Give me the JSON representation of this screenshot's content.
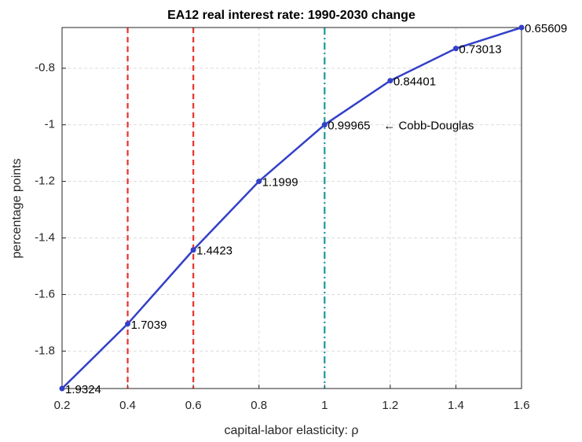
{
  "chart_data": {
    "type": "line",
    "title": "EA12 real interest rate: 1990-2030 change",
    "xlabel": "capital-labor elasticity: ρ",
    "ylabel": "percentage points",
    "x": [
      0.2,
      0.4,
      0.6,
      0.8,
      1,
      1.2,
      1.4,
      1.6
    ],
    "series": [
      {
        "color": "#3340c8",
        "values": [
          -1.9324,
          -1.7039,
          -1.4423,
          -1.1999,
          -0.99965,
          -0.84401,
          -0.73013,
          -0.65609
        ],
        "value_labels": [
          "1.9324",
          "1.7039",
          "1.4423",
          "1.1999",
          "0.99965",
          "0.84401",
          "0.73013",
          "0.65609"
        ]
      }
    ],
    "vlines": [
      {
        "x": 0.4,
        "color": "#e8322b",
        "style": "dashed"
      },
      {
        "x": 0.6,
        "color": "#e8322b",
        "style": "dashed"
      },
      {
        "x": 1,
        "color": "#199a9a",
        "style": "dashdot"
      }
    ],
    "annotations": [
      {
        "text": "← Cobb-Douglas",
        "x": 1,
        "y": -0.99965
      }
    ],
    "xlim": [
      0.2,
      1.6
    ],
    "xticks": [
      0.2,
      0.4,
      0.6,
      0.8,
      1,
      1.2,
      1.4,
      1.6
    ],
    "ylim": [
      -1.9324,
      -0.65609
    ],
    "yticks": [
      -1.8,
      -1.6,
      -1.4,
      -1.2,
      -1,
      -0.8
    ],
    "grid": true
  }
}
